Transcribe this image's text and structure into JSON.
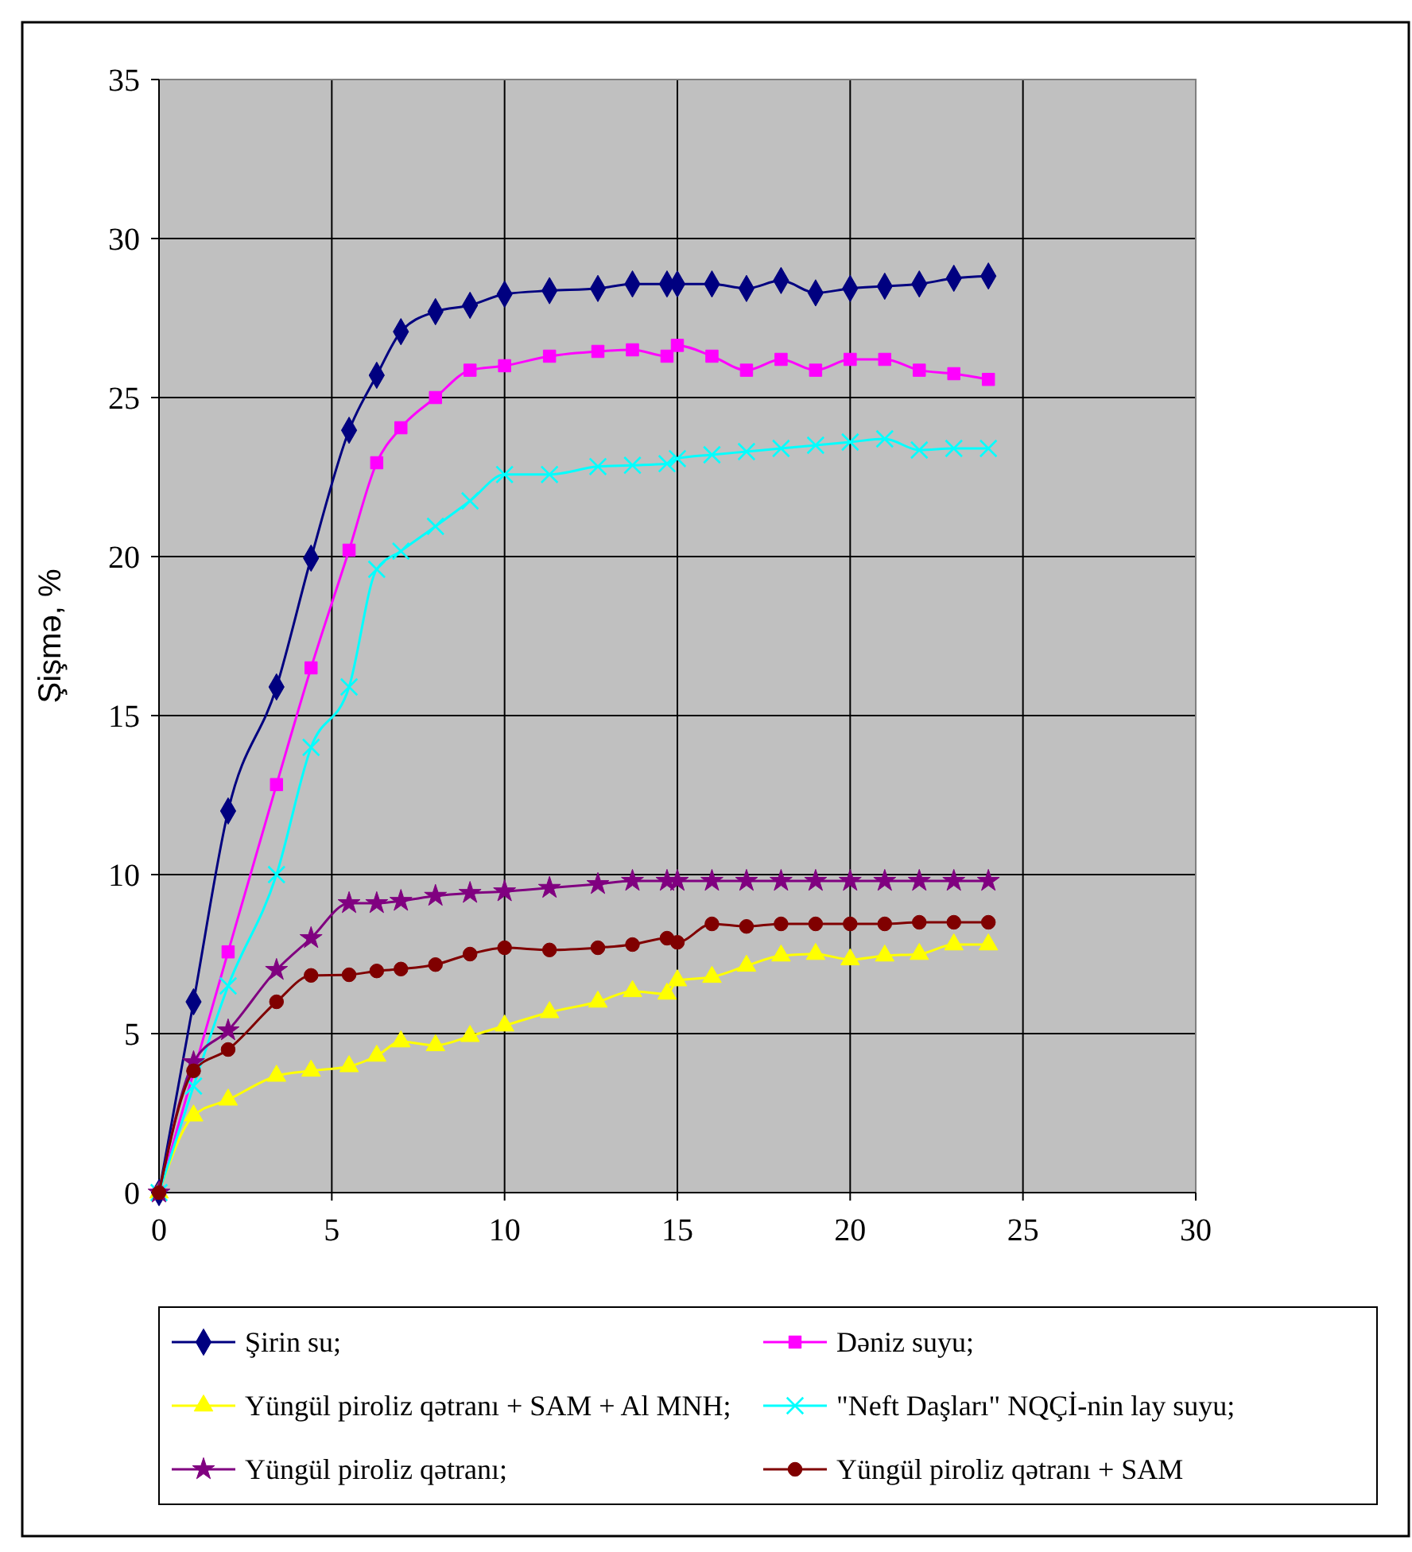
{
  "chart_data": {
    "type": "line",
    "ylabel": "Şişmə, %",
    "x": [
      0,
      1,
      2,
      3.4,
      4.4,
      5.5,
      6.3,
      7,
      8,
      9,
      10,
      11.3,
      12.7,
      13.7,
      14.7,
      15,
      16,
      17,
      18,
      19,
      20,
      21,
      22,
      23,
      24
    ],
    "xlim": [
      0,
      30
    ],
    "xticks": [
      0,
      5,
      10,
      15,
      20,
      25,
      30
    ],
    "ylim": [
      0,
      35
    ],
    "yticks": [
      0,
      5,
      10,
      15,
      20,
      25,
      30,
      35
    ],
    "grid": true,
    "legend": "bottom",
    "series": [
      {
        "name": "Şirin su;",
        "color": "#000080",
        "marker": "diamond",
        "values": [
          0,
          6.0,
          12.0,
          15.9,
          19.95,
          23.97,
          25.7,
          27.07,
          27.7,
          27.9,
          28.25,
          28.36,
          28.43,
          28.57,
          28.57,
          28.57,
          28.57,
          28.43,
          28.68,
          28.29,
          28.43,
          28.5,
          28.57,
          28.75,
          28.82
        ]
      },
      {
        "name": "Dəniz suyu;",
        "color": "#ff00ff",
        "marker": "square",
        "values": [
          0,
          null,
          7.57,
          12.83,
          16.5,
          20.2,
          22.95,
          24.05,
          25.0,
          25.86,
          26.0,
          26.3,
          26.45,
          26.5,
          26.3,
          26.64,
          26.3,
          25.86,
          26.2,
          25.86,
          26.2,
          26.2,
          25.86,
          25.75,
          25.57
        ]
      },
      {
        "name": "Yüngül piroliz qətranı + SAM + Al MNH;",
        "color": "#ffff00",
        "marker": "triangle",
        "values": [
          0,
          2.42,
          2.92,
          3.67,
          3.83,
          3.97,
          4.3,
          4.75,
          4.63,
          4.92,
          5.25,
          5.67,
          6.0,
          6.33,
          6.25,
          6.67,
          6.78,
          7.13,
          7.45,
          7.5,
          7.33,
          7.45,
          7.5,
          7.8,
          7.8
        ]
      },
      {
        "name": "\"Neft Daşları\" NQÇİ-nin lay suyu;",
        "color": "#00ffff",
        "marker": "cross",
        "values": [
          0,
          3.35,
          6.5,
          10.0,
          14.0,
          15.9,
          19.6,
          20.17,
          20.95,
          21.75,
          22.58,
          22.58,
          22.83,
          22.87,
          22.92,
          23.08,
          23.2,
          23.3,
          23.4,
          23.5,
          23.6,
          23.7,
          23.35,
          23.4,
          23.4
        ]
      },
      {
        "name": "Yüngül piroliz qətranı;",
        "color": "#800080",
        "marker": "star",
        "values": [
          0,
          4.1,
          5.1,
          7.0,
          8.0,
          9.1,
          9.1,
          9.17,
          9.33,
          9.42,
          9.47,
          9.58,
          9.7,
          9.8,
          9.8,
          9.8,
          9.8,
          9.8,
          9.8,
          9.8,
          9.8,
          9.8,
          9.8,
          9.8,
          9.8
        ]
      },
      {
        "name": "Yüngül piroliz qətranı + SAM",
        "color": "#800000",
        "marker": "circle",
        "values": [
          0,
          3.83,
          4.5,
          6.0,
          6.83,
          6.85,
          6.97,
          7.03,
          7.17,
          7.5,
          7.7,
          7.63,
          7.7,
          7.8,
          8.0,
          7.87,
          8.45,
          8.37,
          8.45,
          8.45,
          8.45,
          8.45,
          8.5,
          8.5,
          8.5
        ]
      }
    ]
  }
}
